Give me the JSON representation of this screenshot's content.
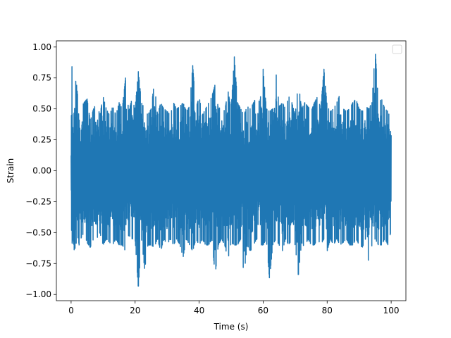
{
  "chart_data": {
    "type": "line",
    "title": "",
    "xlabel": "Time (s)",
    "ylabel": "Strain",
    "xlim": [
      -4.6,
      104.6
    ],
    "ylim": [
      -1.05,
      1.05
    ],
    "xticks": [
      0,
      20,
      40,
      60,
      80,
      100
    ],
    "xtick_labels": [
      "0",
      "20",
      "40",
      "60",
      "80",
      "100"
    ],
    "yticks": [
      -1.0,
      -0.75,
      -0.5,
      -0.25,
      0.0,
      0.25,
      0.5,
      0.75,
      1.0
    ],
    "ytick_labels": [
      "−1.00",
      "−0.75",
      "−0.50",
      "−0.25",
      "0.00",
      "0.25",
      "0.50",
      "0.75",
      "1.00"
    ],
    "grid": false,
    "legend": {
      "placement": "upper-right",
      "entries": []
    },
    "series": [
      {
        "color": "#1f77b4",
        "x_range": [
          0,
          100
        ],
        "note_sampling": "dense noise signal; representative upper/lower envelope samples",
        "envelope_x": [
          0,
          0.3,
          0.6,
          1,
          1.5,
          2,
          2.5,
          3,
          4,
          5,
          6,
          7,
          8,
          9,
          10,
          11,
          12,
          13,
          14,
          15,
          16,
          17,
          18,
          19,
          20,
          21,
          22,
          23,
          24,
          25,
          26,
          27,
          28,
          29,
          30,
          31,
          32,
          33,
          34,
          35,
          36,
          37,
          38,
          39,
          40,
          41,
          42,
          43,
          44,
          45,
          46,
          47,
          48,
          49,
          50,
          51,
          52,
          53,
          54,
          55,
          56,
          57,
          58,
          59,
          60,
          61,
          62,
          63,
          64,
          65,
          66,
          67,
          68,
          69,
          70,
          71,
          72,
          73,
          74,
          75,
          76,
          77,
          78,
          79,
          80,
          81,
          82,
          83,
          84,
          85,
          86,
          87,
          88,
          89,
          90,
          91,
          92,
          93,
          94,
          95,
          96,
          97,
          98,
          99,
          100
        ],
        "upper": [
          0.25,
          0.9,
          0.52,
          0.45,
          0.75,
          0.62,
          0.4,
          0.5,
          0.55,
          0.58,
          0.4,
          0.5,
          0.55,
          0.45,
          0.6,
          0.5,
          0.45,
          0.52,
          0.45,
          0.55,
          0.5,
          0.75,
          0.48,
          0.58,
          0.5,
          0.8,
          0.55,
          0.5,
          0.45,
          0.5,
          0.72,
          0.45,
          0.55,
          0.5,
          0.48,
          0.45,
          0.55,
          0.5,
          0.52,
          0.55,
          0.48,
          0.52,
          0.85,
          0.5,
          0.6,
          0.45,
          0.5,
          0.55,
          0.6,
          0.7,
          0.5,
          0.52,
          0.48,
          0.65,
          0.5,
          0.92,
          0.55,
          0.5,
          0.45,
          0.52,
          0.5,
          0.55,
          0.6,
          0.55,
          0.82,
          0.5,
          0.48,
          0.5,
          0.8,
          0.52,
          0.55,
          0.5,
          0.6,
          0.55,
          0.45,
          0.72,
          0.5,
          0.55,
          0.52,
          0.48,
          0.55,
          0.6,
          0.5,
          0.82,
          0.52,
          0.48,
          0.5,
          0.55,
          0.62,
          0.5,
          0.48,
          0.5,
          0.55,
          0.58,
          0.5,
          0.48,
          0.52,
          0.5,
          0.55,
          0.98,
          0.55,
          0.58,
          0.5,
          0.48,
          0.4
        ],
        "lower": [
          -0.2,
          -0.82,
          -0.55,
          -0.65,
          -0.6,
          -0.52,
          -0.6,
          -0.55,
          -0.5,
          -0.58,
          -0.62,
          -0.55,
          -0.55,
          -0.5,
          -0.6,
          -0.55,
          -0.58,
          -0.6,
          -0.55,
          -0.6,
          -0.6,
          -0.65,
          -0.52,
          -0.55,
          -0.55,
          -0.95,
          -0.55,
          -0.8,
          -0.6,
          -0.6,
          -0.62,
          -0.55,
          -0.65,
          -0.55,
          -0.6,
          -0.55,
          -0.6,
          -0.55,
          -0.6,
          -0.7,
          -0.55,
          -0.6,
          -0.65,
          -0.55,
          -0.6,
          -0.55,
          -0.6,
          -0.6,
          -0.55,
          -0.85,
          -0.6,
          -0.55,
          -0.6,
          -0.72,
          -0.58,
          -0.6,
          -0.6,
          -0.55,
          -0.85,
          -0.6,
          -0.65,
          -0.6,
          -0.55,
          -0.6,
          -0.6,
          -0.55,
          -0.88,
          -0.6,
          -0.55,
          -0.6,
          -0.65,
          -0.55,
          -0.6,
          -0.55,
          -0.6,
          -0.85,
          -0.58,
          -0.62,
          -0.55,
          -0.6,
          -0.6,
          -0.55,
          -0.6,
          -0.55,
          -0.65,
          -0.55,
          -0.6,
          -0.55,
          -0.6,
          -0.58,
          -0.55,
          -0.6,
          -0.6,
          -0.55,
          -0.6,
          -0.62,
          -0.55,
          -0.75,
          -0.6,
          -0.55,
          -0.6,
          -0.6,
          -0.55,
          -0.6,
          -0.48
        ]
      }
    ]
  }
}
